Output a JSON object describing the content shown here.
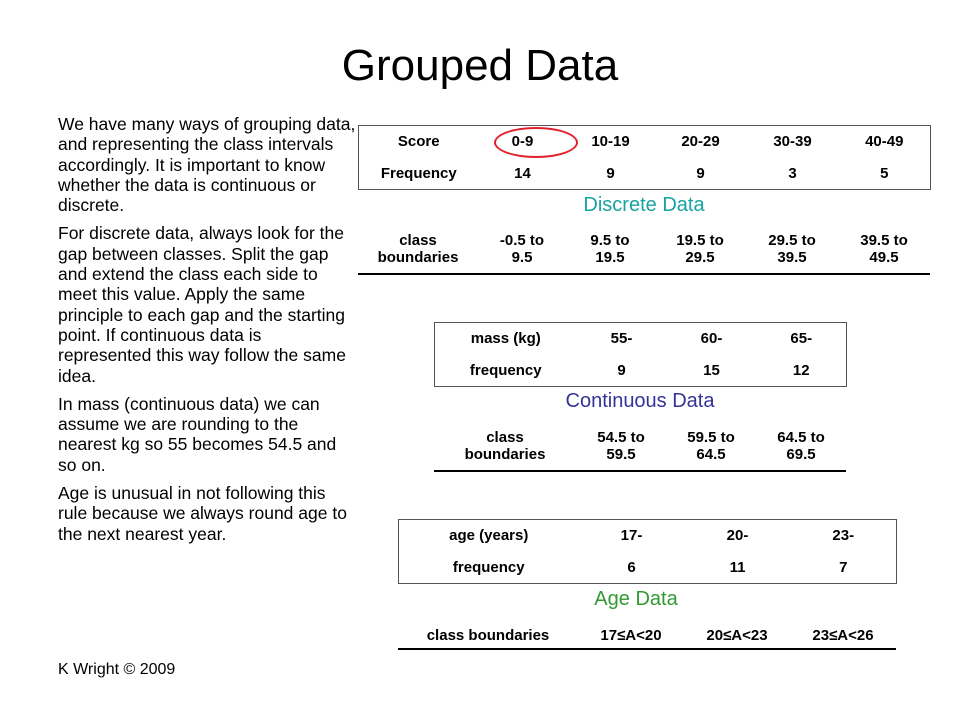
{
  "title": "Grouped Data",
  "paragraphs": [
    "We have many ways of grouping data, and representing the class intervals accordingly. It is important to know whether the data is continuous or discrete.",
    "For discrete data, always look for the gap between classes. Split the gap and extend the class each side to meet this value. Apply the same principle to each gap and the starting point. If continuous data is represented this way follow the same idea.",
    "In mass (continuous data) we can assume we are rounding to the nearest kg so 55 becomes 54.5 and so on.",
    "Age is unusual in not following this rule because we always round age to the next nearest year."
  ],
  "discrete": {
    "score_label": "Score",
    "scores": [
      "0-9",
      "10-19",
      "20-29",
      "30-39",
      "40-49"
    ],
    "freq_label": "Frequency",
    "freqs": [
      "14",
      "9",
      "9",
      "3",
      "5"
    ],
    "section_label": "Discrete Data",
    "section_color": "#18a3a3",
    "boundary_label": [
      "class",
      "boundaries"
    ],
    "boundaries": [
      [
        "-0.5 to",
        "9.5"
      ],
      [
        "9.5 to",
        "19.5"
      ],
      [
        "19.5 to",
        "29.5"
      ],
      [
        "29.5 to",
        "39.5"
      ],
      [
        "39.5 to",
        "49.5"
      ]
    ]
  },
  "continuous": {
    "mass_label": "mass (kg)",
    "masses": [
      "55-",
      "60-",
      "65-"
    ],
    "freq_label": "frequency",
    "freqs": [
      "9",
      "15",
      "12"
    ],
    "section_label": "Continuous Data",
    "section_color": "#333399",
    "boundary_label": [
      "class",
      "boundaries"
    ],
    "boundaries": [
      [
        "54.5 to",
        "59.5"
      ],
      [
        "59.5 to",
        "64.5"
      ],
      [
        "64.5 to",
        "69.5"
      ]
    ]
  },
  "age": {
    "age_label": "age (years)",
    "ages": [
      "17-",
      "20-",
      "23-"
    ],
    "freq_label": "frequency",
    "freqs": [
      "6",
      "11",
      "7"
    ],
    "section_label": "Age Data",
    "section_color": "#339933",
    "boundary_label": "class boundaries",
    "boundaries": [
      "17≤A<20",
      "20≤A<23",
      "23≤A<26"
    ]
  },
  "highlight_color": "#e0202a",
  "footer": "K Wright © 2009"
}
